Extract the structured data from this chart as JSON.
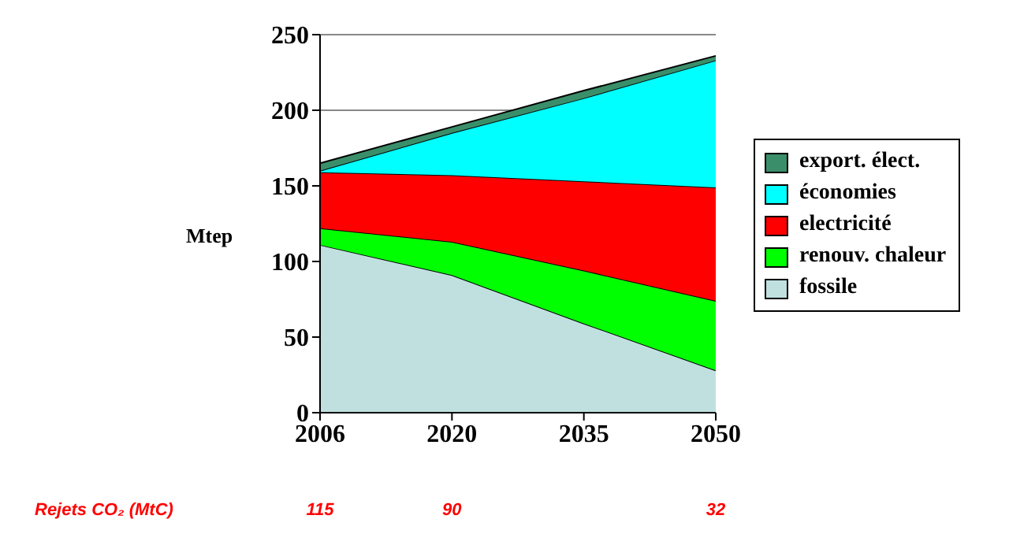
{
  "chart_data": {
    "type": "area",
    "stacked": true,
    "ylabel": "Mtep",
    "categories": [
      "2006",
      "2020",
      "2035",
      "2050"
    ],
    "series": [
      {
        "name": "fossile",
        "color": "#c0e0e0",
        "values": [
          111,
          91,
          59,
          28
        ]
      },
      {
        "name": "renouv. chaleur",
        "color": "#00ff00",
        "values": [
          11,
          22,
          35,
          46
        ]
      },
      {
        "name": "electricité",
        "color": "#ff0000",
        "values": [
          37,
          44,
          59,
          75
        ]
      },
      {
        "name": "économies",
        "color": "#00ffff",
        "values": [
          1,
          28,
          55,
          84
        ]
      },
      {
        "name": "export. élect.",
        "color": "#3a8f6a",
        "values": [
          5,
          4,
          5,
          3
        ]
      }
    ],
    "ylim": [
      0,
      250
    ],
    "yticks": [
      0,
      50,
      100,
      150,
      200,
      250
    ],
    "grid": "y",
    "legend": "right",
    "annotations": [
      "Rejets CO₂ (MtC)",
      "115",
      "90",
      "32"
    ]
  }
}
